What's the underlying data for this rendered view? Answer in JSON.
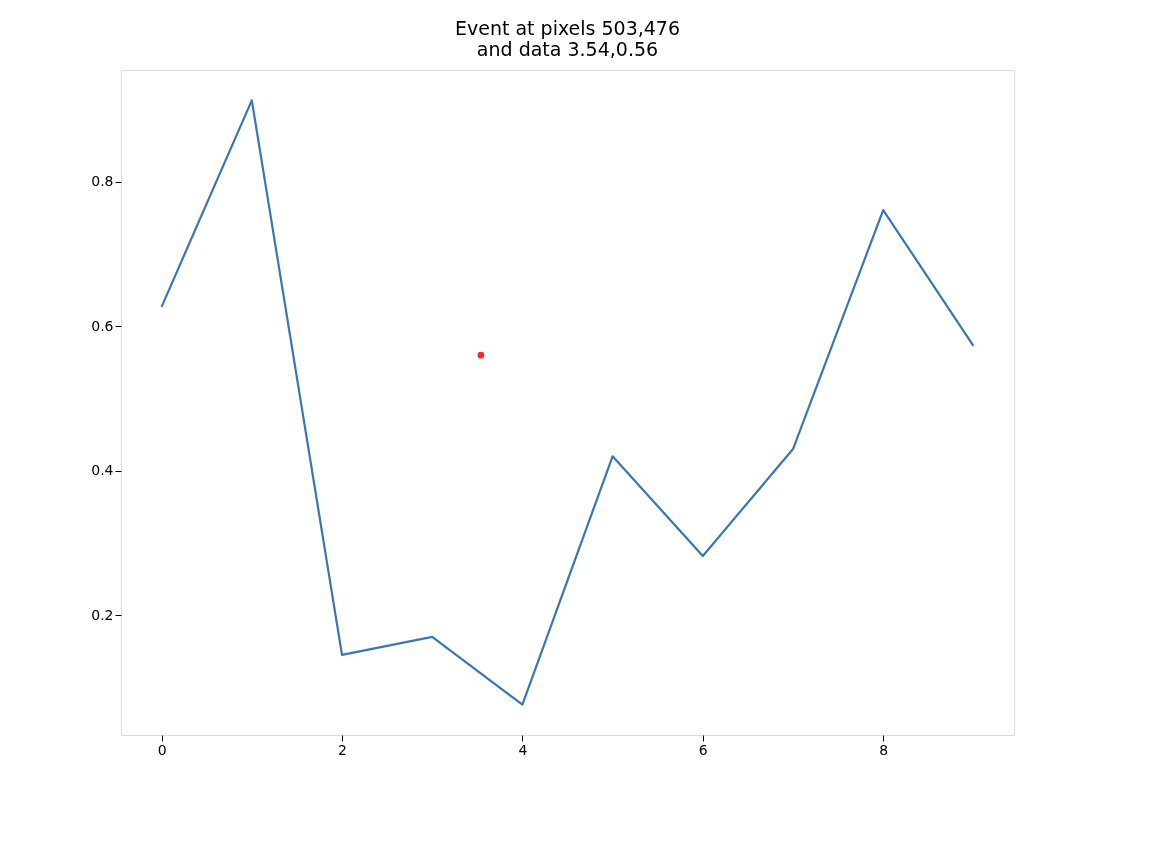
{
  "chart_data": {
    "type": "line",
    "title": [
      "Event at pixels 503,476",
      "and data 3.54,0.56"
    ],
    "x": [
      0,
      1,
      2,
      3,
      4,
      5,
      6,
      7,
      8,
      9
    ],
    "series": [
      {
        "color": "#3a77b0",
        "values": [
          0.627,
          0.913,
          0.145,
          0.17,
          0.076,
          0.42,
          0.282,
          0.43,
          0.761,
          0.573
        ]
      },
      {
        "type": "scatter",
        "color": "#e8302a",
        "x": [
          3.54
        ],
        "values": [
          0.56
        ]
      }
    ],
    "xlim": [
      -0.45,
      9.45
    ],
    "ylim": [
      0.034,
      0.955
    ],
    "xticks": [
      0,
      2,
      4,
      6,
      8
    ],
    "yticks": [
      0.2,
      0.4,
      0.6,
      0.8
    ],
    "grid": false,
    "marker": "none",
    "line_style": "solid"
  }
}
